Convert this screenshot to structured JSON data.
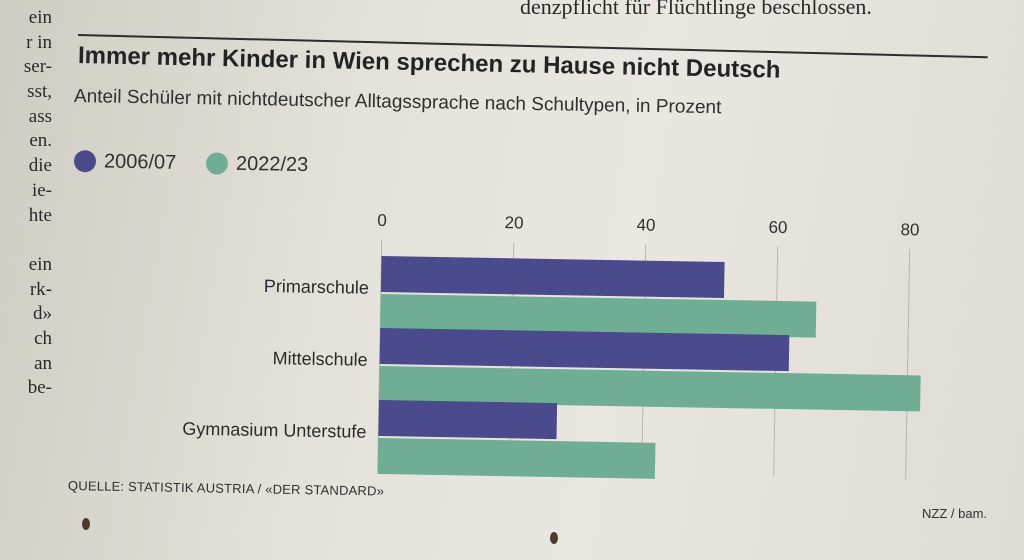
{
  "article": {
    "left_column_fragments": [
      "ein",
      "r in",
      "ser-",
      "sst,",
      "ass",
      "en.",
      "die",
      "ie-",
      "hte",
      "",
      "ein",
      "rk-",
      "d»",
      "ch",
      "an",
      "be-"
    ],
    "top_snippet": "denzpflicht für Flüchtlinge beschlossen."
  },
  "chart_data": {
    "type": "bar",
    "orientation": "horizontal",
    "title": "Immer mehr Kinder in Wien sprechen zu Hause nicht Deutsch",
    "subtitle": "Anteil Schüler mit nichtdeutscher Alltagssprache nach Schultypen, in Prozent",
    "categories": [
      "Primarschule",
      "Mittelschule",
      "Gymnasium Unterstufe"
    ],
    "series": [
      {
        "name": "2006/07",
        "values": [
          52,
          62,
          27
        ],
        "color": "#4b4a8c"
      },
      {
        "name": "2022/23",
        "values": [
          66,
          82,
          42
        ],
        "color": "#6fae94"
      }
    ],
    "x_ticks": [
      0,
      20,
      40,
      60,
      80
    ],
    "xlim": [
      0,
      82
    ],
    "grid": true,
    "legend_position": "top-left",
    "source": "QUELLE: STATISTIK AUSTRIA / «DER STANDARD»",
    "credit": "NZZ / bam."
  }
}
